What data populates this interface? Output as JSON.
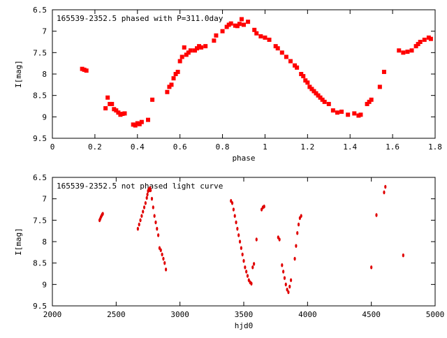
{
  "chart_data": [
    {
      "type": "scatter",
      "title": "165539-2352.5 phased with P=311.0day",
      "xlabel": "phase",
      "ylabel": "I[mag]",
      "xlim": [
        0,
        1.8
      ],
      "ylim": [
        6.5,
        9.5
      ],
      "y_inverted": true,
      "x_ticks": [
        "0",
        "0.2",
        "0.4",
        "0.6",
        "0.8",
        "1",
        "1.2",
        "1.4",
        "1.6",
        "1.8"
      ],
      "y_ticks": [
        "6.5",
        "7",
        "7.5",
        "8",
        "8.5",
        "9",
        "9.5"
      ],
      "marker_color": "#ff0000",
      "x": [
        0.14,
        0.15,
        0.16,
        0.25,
        0.26,
        0.27,
        0.28,
        0.29,
        0.3,
        0.31,
        0.32,
        0.33,
        0.34,
        0.38,
        0.39,
        0.4,
        0.41,
        0.42,
        0.45,
        0.47,
        0.54,
        0.55,
        0.56,
        0.57,
        0.58,
        0.59,
        0.6,
        0.61,
        0.62,
        0.63,
        0.64,
        0.65,
        0.67,
        0.68,
        0.69,
        0.7,
        0.72,
        0.76,
        0.77,
        0.8,
        0.82,
        0.83,
        0.84,
        0.86,
        0.87,
        0.88,
        0.89,
        0.9,
        0.92,
        0.95,
        0.96,
        0.98,
        1.0,
        1.02,
        1.05,
        1.06,
        1.08,
        1.1,
        1.12,
        1.14,
        1.15,
        1.17,
        1.18,
        1.19,
        1.2,
        1.21,
        1.22,
        1.23,
        1.24,
        1.25,
        1.26,
        1.27,
        1.28,
        1.3,
        1.32,
        1.34,
        1.36,
        1.39,
        1.42,
        1.44,
        1.45,
        1.48,
        1.49,
        1.5,
        1.54,
        1.56,
        1.63,
        1.65,
        1.67,
        1.69,
        1.71,
        1.72,
        1.73,
        1.75,
        1.77,
        1.78
      ],
      "y": [
        7.88,
        7.9,
        7.92,
        8.8,
        8.55,
        8.7,
        8.7,
        8.82,
        8.85,
        8.9,
        8.95,
        8.93,
        8.92,
        9.18,
        9.2,
        9.15,
        9.17,
        9.12,
        9.07,
        8.6,
        8.42,
        8.3,
        8.25,
        8.1,
        8.0,
        7.95,
        7.7,
        7.6,
        7.38,
        7.55,
        7.5,
        7.45,
        7.45,
        7.4,
        7.35,
        7.38,
        7.35,
        7.22,
        7.1,
        7.0,
        6.9,
        6.85,
        6.82,
        6.87,
        6.88,
        6.83,
        6.72,
        6.85,
        6.78,
        6.97,
        7.05,
        7.12,
        7.15,
        7.2,
        7.35,
        7.4,
        7.5,
        7.6,
        7.7,
        7.8,
        7.85,
        8.0,
        8.05,
        8.15,
        8.2,
        8.3,
        8.35,
        8.4,
        8.45,
        8.5,
        8.55,
        8.6,
        8.65,
        8.7,
        8.85,
        8.9,
        8.88,
        8.95,
        8.92,
        8.97,
        8.95,
        8.7,
        8.65,
        8.6,
        8.3,
        7.95,
        7.45,
        7.5,
        7.48,
        7.45,
        7.35,
        7.3,
        7.25,
        7.2,
        7.15,
        7.18
      ]
    },
    {
      "type": "scatter",
      "title": "165539-2352.5 not phased light curve",
      "xlabel": "hjd0",
      "ylabel": "I[mag]",
      "xlim": [
        2000,
        5000
      ],
      "ylim": [
        6.5,
        9.5
      ],
      "y_inverted": true,
      "x_ticks": [
        "2000",
        "2500",
        "3000",
        "3500",
        "4000",
        "4500",
        "5000"
      ],
      "y_ticks": [
        "6.5",
        "7",
        "7.5",
        "8",
        "8.5",
        "9",
        "9.5"
      ],
      "marker_color": "#ff0000",
      "x": [
        2370,
        2375,
        2380,
        2385,
        2390,
        2395,
        2670,
        2680,
        2690,
        2700,
        2710,
        2720,
        2730,
        2740,
        2745,
        2750,
        2755,
        2760,
        2765,
        2770,
        2780,
        2790,
        2800,
        2810,
        2820,
        2830,
        2840,
        2850,
        2860,
        2870,
        2880,
        2890,
        3400,
        3410,
        3420,
        3430,
        3440,
        3450,
        3460,
        3470,
        3480,
        3490,
        3500,
        3510,
        3520,
        3530,
        3540,
        3550,
        3560,
        3570,
        3580,
        3600,
        3640,
        3650,
        3660,
        3770,
        3780,
        3800,
        3810,
        3820,
        3830,
        3840,
        3850,
        3860,
        3870,
        3900,
        3910,
        3920,
        3930,
        3940,
        3950,
        4500,
        4540,
        4600,
        4610,
        4750
      ],
      "y": [
        7.5,
        7.47,
        7.43,
        7.4,
        7.37,
        7.35,
        7.7,
        7.6,
        7.5,
        7.4,
        7.3,
        7.2,
        7.1,
        6.98,
        6.9,
        6.82,
        6.78,
        6.8,
        6.75,
        6.8,
        7.0,
        7.2,
        7.4,
        7.55,
        7.7,
        7.85,
        8.15,
        8.2,
        8.3,
        8.4,
        8.5,
        8.65,
        7.05,
        7.1,
        7.25,
        7.4,
        7.55,
        7.7,
        7.85,
        8.0,
        8.15,
        8.3,
        8.45,
        8.6,
        8.7,
        8.8,
        8.9,
        8.95,
        8.98,
        8.6,
        8.52,
        7.95,
        7.25,
        7.2,
        7.18,
        7.9,
        7.95,
        8.55,
        8.7,
        8.85,
        9.0,
        9.12,
        9.18,
        9.05,
        8.9,
        8.4,
        8.1,
        7.8,
        7.6,
        7.45,
        7.4,
        8.6,
        7.38,
        6.85,
        6.72,
        8.32
      ]
    }
  ]
}
